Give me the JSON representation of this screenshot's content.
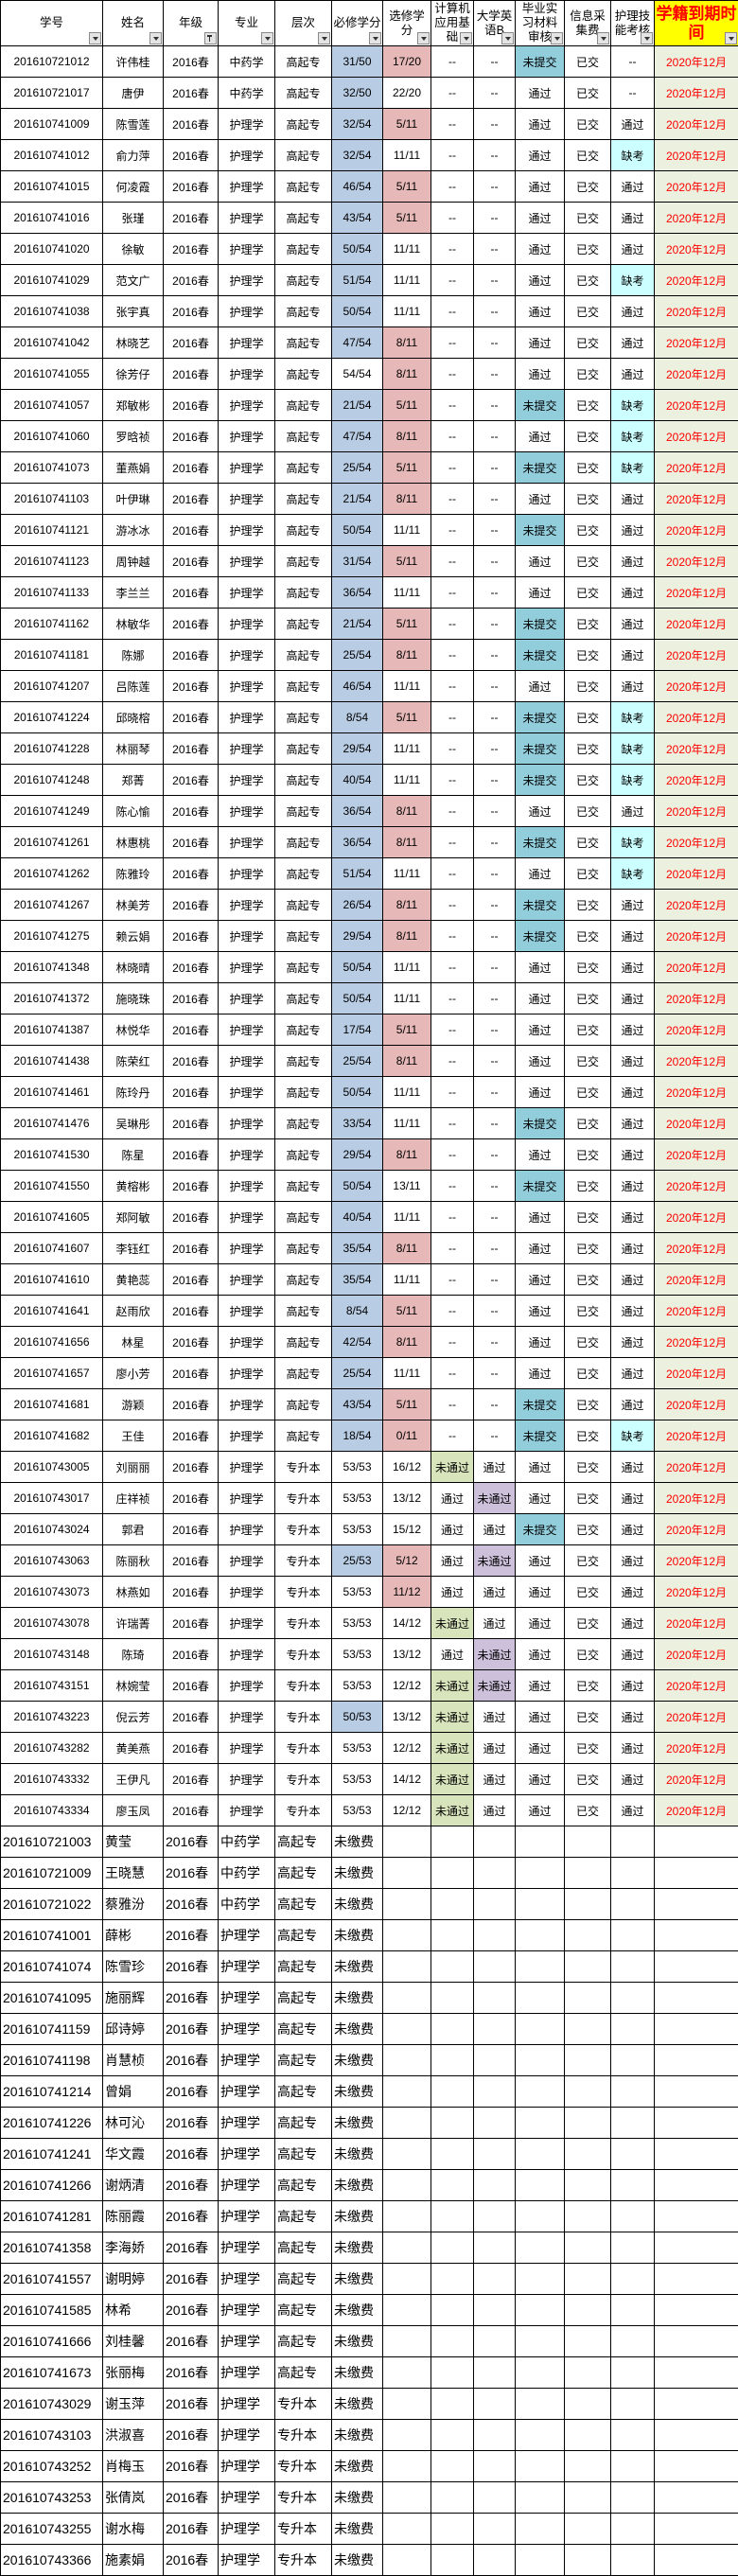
{
  "colors": {
    "header_highlight": "#ffff00",
    "header_highlight_text": "#ff0000",
    "required_incomplete": "#b8cce4",
    "elective_incomplete": "#e6b8b7",
    "not_submitted": "#92cddc",
    "absent": "#ccffff",
    "computer_failed": "#d8e4bc",
    "english_failed": "#ccc0da",
    "expiry_column": "#ebf1de",
    "expiry_text": "#ff0000"
  },
  "headers": [
    "学号",
    "姓名",
    "年级",
    "专业",
    "层次",
    "必修学分",
    "选修学分",
    "计算机应用基础",
    "大学英语B",
    "毕业实习材料审核",
    "信息采集费",
    "护理技能考核",
    "学籍到期时间"
  ],
  "filter_active_column": "年级",
  "rows": [
    [
      "201610721012",
      "许伟桂",
      "2016春",
      "中药学",
      "高起专",
      "31/50",
      "17/20",
      "--",
      "--",
      "未提交",
      "已交",
      "--",
      "2020年12月"
    ],
    [
      "201610721017",
      "唐伊",
      "2016春",
      "中药学",
      "高起专",
      "32/50",
      "22/20",
      "--",
      "--",
      "通过",
      "已交",
      "--",
      "2020年12月"
    ],
    [
      "201610741009",
      "陈雪莲",
      "2016春",
      "护理学",
      "高起专",
      "32/54",
      "5/11",
      "--",
      "--",
      "通过",
      "已交",
      "通过",
      "2020年12月"
    ],
    [
      "201610741012",
      "俞力萍",
      "2016春",
      "护理学",
      "高起专",
      "32/54",
      "11/11",
      "--",
      "--",
      "通过",
      "已交",
      "缺考",
      "2020年12月"
    ],
    [
      "201610741015",
      "何凌霞",
      "2016春",
      "护理学",
      "高起专",
      "46/54",
      "5/11",
      "--",
      "--",
      "通过",
      "已交",
      "通过",
      "2020年12月"
    ],
    [
      "201610741016",
      "张瑾",
      "2016春",
      "护理学",
      "高起专",
      "43/54",
      "5/11",
      "--",
      "--",
      "通过",
      "已交",
      "通过",
      "2020年12月"
    ],
    [
      "201610741020",
      "徐敏",
      "2016春",
      "护理学",
      "高起专",
      "50/54",
      "11/11",
      "--",
      "--",
      "通过",
      "已交",
      "通过",
      "2020年12月"
    ],
    [
      "201610741029",
      "范文广",
      "2016春",
      "护理学",
      "高起专",
      "51/54",
      "11/11",
      "--",
      "--",
      "通过",
      "已交",
      "缺考",
      "2020年12月"
    ],
    [
      "201610741038",
      "张宇真",
      "2016春",
      "护理学",
      "高起专",
      "50/54",
      "11/11",
      "--",
      "--",
      "通过",
      "已交",
      "通过",
      "2020年12月"
    ],
    [
      "201610741042",
      "林晓艺",
      "2016春",
      "护理学",
      "高起专",
      "47/54",
      "8/11",
      "--",
      "--",
      "通过",
      "已交",
      "通过",
      "2020年12月"
    ],
    [
      "201610741055",
      "徐芳仔",
      "2016春",
      "护理学",
      "高起专",
      "54/54",
      "8/11",
      "--",
      "--",
      "通过",
      "已交",
      "通过",
      "2020年12月"
    ],
    [
      "201610741057",
      "郑敏彬",
      "2016春",
      "护理学",
      "高起专",
      "21/54",
      "5/11",
      "--",
      "--",
      "未提交",
      "已交",
      "缺考",
      "2020年12月"
    ],
    [
      "201610741060",
      "罗晗祯",
      "2016春",
      "护理学",
      "高起专",
      "47/54",
      "8/11",
      "--",
      "--",
      "通过",
      "已交",
      "缺考",
      "2020年12月"
    ],
    [
      "201610741073",
      "董燕娟",
      "2016春",
      "护理学",
      "高起专",
      "25/54",
      "5/11",
      "--",
      "--",
      "未提交",
      "已交",
      "缺考",
      "2020年12月"
    ],
    [
      "201610741103",
      "叶伊琳",
      "2016春",
      "护理学",
      "高起专",
      "21/54",
      "8/11",
      "--",
      "--",
      "通过",
      "已交",
      "通过",
      "2020年12月"
    ],
    [
      "201610741121",
      "游冰冰",
      "2016春",
      "护理学",
      "高起专",
      "50/54",
      "11/11",
      "--",
      "--",
      "未提交",
      "已交",
      "通过",
      "2020年12月"
    ],
    [
      "201610741123",
      "周钟越",
      "2016春",
      "护理学",
      "高起专",
      "31/54",
      "5/11",
      "--",
      "--",
      "通过",
      "已交",
      "通过",
      "2020年12月"
    ],
    [
      "201610741133",
      "李兰兰",
      "2016春",
      "护理学",
      "高起专",
      "36/54",
      "11/11",
      "--",
      "--",
      "通过",
      "已交",
      "通过",
      "2020年12月"
    ],
    [
      "201610741162",
      "林敏华",
      "2016春",
      "护理学",
      "高起专",
      "21/54",
      "5/11",
      "--",
      "--",
      "未提交",
      "已交",
      "通过",
      "2020年12月"
    ],
    [
      "201610741181",
      "陈娜",
      "2016春",
      "护理学",
      "高起专",
      "25/54",
      "8/11",
      "--",
      "--",
      "未提交",
      "已交",
      "通过",
      "2020年12月"
    ],
    [
      "201610741207",
      "吕陈莲",
      "2016春",
      "护理学",
      "高起专",
      "46/54",
      "11/11",
      "--",
      "--",
      "通过",
      "已交",
      "通过",
      "2020年12月"
    ],
    [
      "201610741224",
      "邱晓榕",
      "2016春",
      "护理学",
      "高起专",
      "8/54",
      "5/11",
      "--",
      "--",
      "未提交",
      "已交",
      "缺考",
      "2020年12月"
    ],
    [
      "201610741228",
      "林丽琴",
      "2016春",
      "护理学",
      "高起专",
      "29/54",
      "11/11",
      "--",
      "--",
      "未提交",
      "已交",
      "缺考",
      "2020年12月"
    ],
    [
      "201610741248",
      "郑菁",
      "2016春",
      "护理学",
      "高起专",
      "40/54",
      "11/11",
      "--",
      "--",
      "未提交",
      "已交",
      "缺考",
      "2020年12月"
    ],
    [
      "201610741249",
      "陈心愉",
      "2016春",
      "护理学",
      "高起专",
      "36/54",
      "8/11",
      "--",
      "--",
      "通过",
      "已交",
      "通过",
      "2020年12月"
    ],
    [
      "201610741261",
      "林惠桃",
      "2016春",
      "护理学",
      "高起专",
      "36/54",
      "8/11",
      "--",
      "--",
      "未提交",
      "已交",
      "缺考",
      "2020年12月"
    ],
    [
      "201610741262",
      "陈雅玲",
      "2016春",
      "护理学",
      "高起专",
      "51/54",
      "11/11",
      "--",
      "--",
      "通过",
      "已交",
      "缺考",
      "2020年12月"
    ],
    [
      "201610741267",
      "林美芳",
      "2016春",
      "护理学",
      "高起专",
      "26/54",
      "8/11",
      "--",
      "--",
      "未提交",
      "已交",
      "通过",
      "2020年12月"
    ],
    [
      "201610741275",
      "赖云娟",
      "2016春",
      "护理学",
      "高起专",
      "29/54",
      "8/11",
      "--",
      "--",
      "未提交",
      "已交",
      "通过",
      "2020年12月"
    ],
    [
      "201610741348",
      "林晓晴",
      "2016春",
      "护理学",
      "高起专",
      "50/54",
      "11/11",
      "--",
      "--",
      "通过",
      "已交",
      "通过",
      "2020年12月"
    ],
    [
      "201610741372",
      "施晓珠",
      "2016春",
      "护理学",
      "高起专",
      "50/54",
      "11/11",
      "--",
      "--",
      "通过",
      "已交",
      "通过",
      "2020年12月"
    ],
    [
      "201610741387",
      "林悦华",
      "2016春",
      "护理学",
      "高起专",
      "17/54",
      "5/11",
      "--",
      "--",
      "通过",
      "已交",
      "通过",
      "2020年12月"
    ],
    [
      "201610741438",
      "陈荣红",
      "2016春",
      "护理学",
      "高起专",
      "25/54",
      "8/11",
      "--",
      "--",
      "通过",
      "已交",
      "通过",
      "2020年12月"
    ],
    [
      "201610741461",
      "陈玲丹",
      "2016春",
      "护理学",
      "高起专",
      "50/54",
      "11/11",
      "--",
      "--",
      "通过",
      "已交",
      "通过",
      "2020年12月"
    ],
    [
      "201610741476",
      "吴琳彤",
      "2016春",
      "护理学",
      "高起专",
      "33/54",
      "11/11",
      "--",
      "--",
      "未提交",
      "已交",
      "通过",
      "2020年12月"
    ],
    [
      "201610741530",
      "陈星",
      "2016春",
      "护理学",
      "高起专",
      "29/54",
      "8/11",
      "--",
      "--",
      "通过",
      "已交",
      "通过",
      "2020年12月"
    ],
    [
      "201610741550",
      "黄榕彬",
      "2016春",
      "护理学",
      "高起专",
      "50/54",
      "13/11",
      "--",
      "--",
      "未提交",
      "已交",
      "通过",
      "2020年12月"
    ],
    [
      "201610741605",
      "郑阿敏",
      "2016春",
      "护理学",
      "高起专",
      "40/54",
      "11/11",
      "--",
      "--",
      "通过",
      "已交",
      "通过",
      "2020年12月"
    ],
    [
      "201610741607",
      "李钰红",
      "2016春",
      "护理学",
      "高起专",
      "35/54",
      "8/11",
      "--",
      "--",
      "通过",
      "已交",
      "通过",
      "2020年12月"
    ],
    [
      "201610741610",
      "黄艳蕊",
      "2016春",
      "护理学",
      "高起专",
      "35/54",
      "11/11",
      "--",
      "--",
      "通过",
      "已交",
      "通过",
      "2020年12月"
    ],
    [
      "201610741641",
      "赵雨欣",
      "2016春",
      "护理学",
      "高起专",
      "8/54",
      "5/11",
      "--",
      "--",
      "通过",
      "已交",
      "通过",
      "2020年12月"
    ],
    [
      "201610741656",
      "林星",
      "2016春",
      "护理学",
      "高起专",
      "42/54",
      "8/11",
      "--",
      "--",
      "通过",
      "已交",
      "通过",
      "2020年12月"
    ],
    [
      "201610741657",
      "廖小芳",
      "2016春",
      "护理学",
      "高起专",
      "25/54",
      "11/11",
      "--",
      "--",
      "通过",
      "已交",
      "通过",
      "2020年12月"
    ],
    [
      "201610741681",
      "游颖",
      "2016春",
      "护理学",
      "高起专",
      "43/54",
      "5/11",
      "--",
      "--",
      "未提交",
      "已交",
      "通过",
      "2020年12月"
    ],
    [
      "201610741682",
      "王佳",
      "2016春",
      "护理学",
      "高起专",
      "18/54",
      "0/11",
      "--",
      "--",
      "未提交",
      "已交",
      "缺考",
      "2020年12月"
    ],
    [
      "201610743005",
      "刘丽丽",
      "2016春",
      "护理学",
      "专升本",
      "53/53",
      "16/12",
      "未通过",
      "通过",
      "通过",
      "已交",
      "通过",
      "2020年12月"
    ],
    [
      "201610743017",
      "庄祥祯",
      "2016春",
      "护理学",
      "专升本",
      "53/53",
      "13/12",
      "通过",
      "未通过",
      "通过",
      "已交",
      "通过",
      "2020年12月"
    ],
    [
      "201610743024",
      "郭君",
      "2016春",
      "护理学",
      "专升本",
      "53/53",
      "15/12",
      "通过",
      "通过",
      "未提交",
      "已交",
      "通过",
      "2020年12月"
    ],
    [
      "201610743063",
      "陈丽秋",
      "2016春",
      "护理学",
      "专升本",
      "25/53",
      "5/12",
      "通过",
      "未通过",
      "通过",
      "已交",
      "通过",
      "2020年12月"
    ],
    [
      "201610743073",
      "林燕如",
      "2016春",
      "护理学",
      "专升本",
      "53/53",
      "11/12",
      "通过",
      "通过",
      "通过",
      "已交",
      "通过",
      "2020年12月"
    ],
    [
      "201610743078",
      "许瑞菁",
      "2016春",
      "护理学",
      "专升本",
      "53/53",
      "14/12",
      "未通过",
      "通过",
      "通过",
      "已交",
      "通过",
      "2020年12月"
    ],
    [
      "201610743148",
      "陈琦",
      "2016春",
      "护理学",
      "专升本",
      "53/53",
      "13/12",
      "通过",
      "未通过",
      "通过",
      "已交",
      "通过",
      "2020年12月"
    ],
    [
      "201610743151",
      "林婉莹",
      "2016春",
      "护理学",
      "专升本",
      "53/53",
      "12/12",
      "未通过",
      "未通过",
      "通过",
      "已交",
      "通过",
      "2020年12月"
    ],
    [
      "201610743223",
      "倪云芳",
      "2016春",
      "护理学",
      "专升本",
      "50/53",
      "13/12",
      "未通过",
      "通过",
      "通过",
      "已交",
      "通过",
      "2020年12月"
    ],
    [
      "201610743282",
      "黄美燕",
      "2016春",
      "护理学",
      "专升本",
      "53/53",
      "12/12",
      "未通过",
      "通过",
      "通过",
      "已交",
      "通过",
      "2020年12月"
    ],
    [
      "201610743332",
      "王伊凡",
      "2016春",
      "护理学",
      "专升本",
      "53/53",
      "14/12",
      "未通过",
      "通过",
      "通过",
      "已交",
      "通过",
      "2020年12月"
    ],
    [
      "201610743334",
      "廖玉凤",
      "2016春",
      "护理学",
      "专升本",
      "53/53",
      "12/12",
      "未通过",
      "通过",
      "通过",
      "已交",
      "通过",
      "2020年12月"
    ]
  ],
  "unpaid_rows": [
    [
      "201610721003",
      "黄莹",
      "2016春",
      "中药学",
      "高起专",
      "未缴费"
    ],
    [
      "201610721009",
      "王晓慧",
      "2016春",
      "中药学",
      "高起专",
      "未缴费"
    ],
    [
      "201610721022",
      "蔡雅汾",
      "2016春",
      "中药学",
      "高起专",
      "未缴费"
    ],
    [
      "201610741001",
      "薛彬",
      "2016春",
      "护理学",
      "高起专",
      "未缴费"
    ],
    [
      "201610741074",
      "陈雪珍",
      "2016春",
      "护理学",
      "高起专",
      "未缴费"
    ],
    [
      "201610741095",
      "施丽辉",
      "2016春",
      "护理学",
      "高起专",
      "未缴费"
    ],
    [
      "201610741159",
      "邱诗婷",
      "2016春",
      "护理学",
      "高起专",
      "未缴费"
    ],
    [
      "201610741198",
      "肖慧桢",
      "2016春",
      "护理学",
      "高起专",
      "未缴费"
    ],
    [
      "201610741214",
      "曾娟",
      "2016春",
      "护理学",
      "高起专",
      "未缴费"
    ],
    [
      "201610741226",
      "林可沁",
      "2016春",
      "护理学",
      "高起专",
      "未缴费"
    ],
    [
      "201610741241",
      "华文霞",
      "2016春",
      "护理学",
      "高起专",
      "未缴费"
    ],
    [
      "201610741266",
      "谢炳清",
      "2016春",
      "护理学",
      "高起专",
      "未缴费"
    ],
    [
      "201610741281",
      "陈丽霞",
      "2016春",
      "护理学",
      "高起专",
      "未缴费"
    ],
    [
      "201610741358",
      "李海娇",
      "2016春",
      "护理学",
      "高起专",
      "未缴费"
    ],
    [
      "201610741557",
      "谢明婷",
      "2016春",
      "护理学",
      "高起专",
      "未缴费"
    ],
    [
      "201610741585",
      "林希",
      "2016春",
      "护理学",
      "高起专",
      "未缴费"
    ],
    [
      "201610741666",
      "刘桂馨",
      "2016春",
      "护理学",
      "高起专",
      "未缴费"
    ],
    [
      "201610741673",
      "张丽梅",
      "2016春",
      "护理学",
      "高起专",
      "未缴费"
    ],
    [
      "201610743029",
      "谢玉萍",
      "2016春",
      "护理学",
      "专升本",
      "未缴费"
    ],
    [
      "201610743103",
      "洪淑喜",
      "2016春",
      "护理学",
      "专升本",
      "未缴费"
    ],
    [
      "201610743252",
      "肖梅玉",
      "2016春",
      "护理学",
      "专升本",
      "未缴费"
    ],
    [
      "201610743253",
      "张倩岚",
      "2016春",
      "护理学",
      "专升本",
      "未缴费"
    ],
    [
      "201610743255",
      "谢水梅",
      "2016春",
      "护理学",
      "专升本",
      "未缴费"
    ],
    [
      "201610743366",
      "施素娟",
      "2016春",
      "护理学",
      "专升本",
      "未缴费"
    ]
  ]
}
